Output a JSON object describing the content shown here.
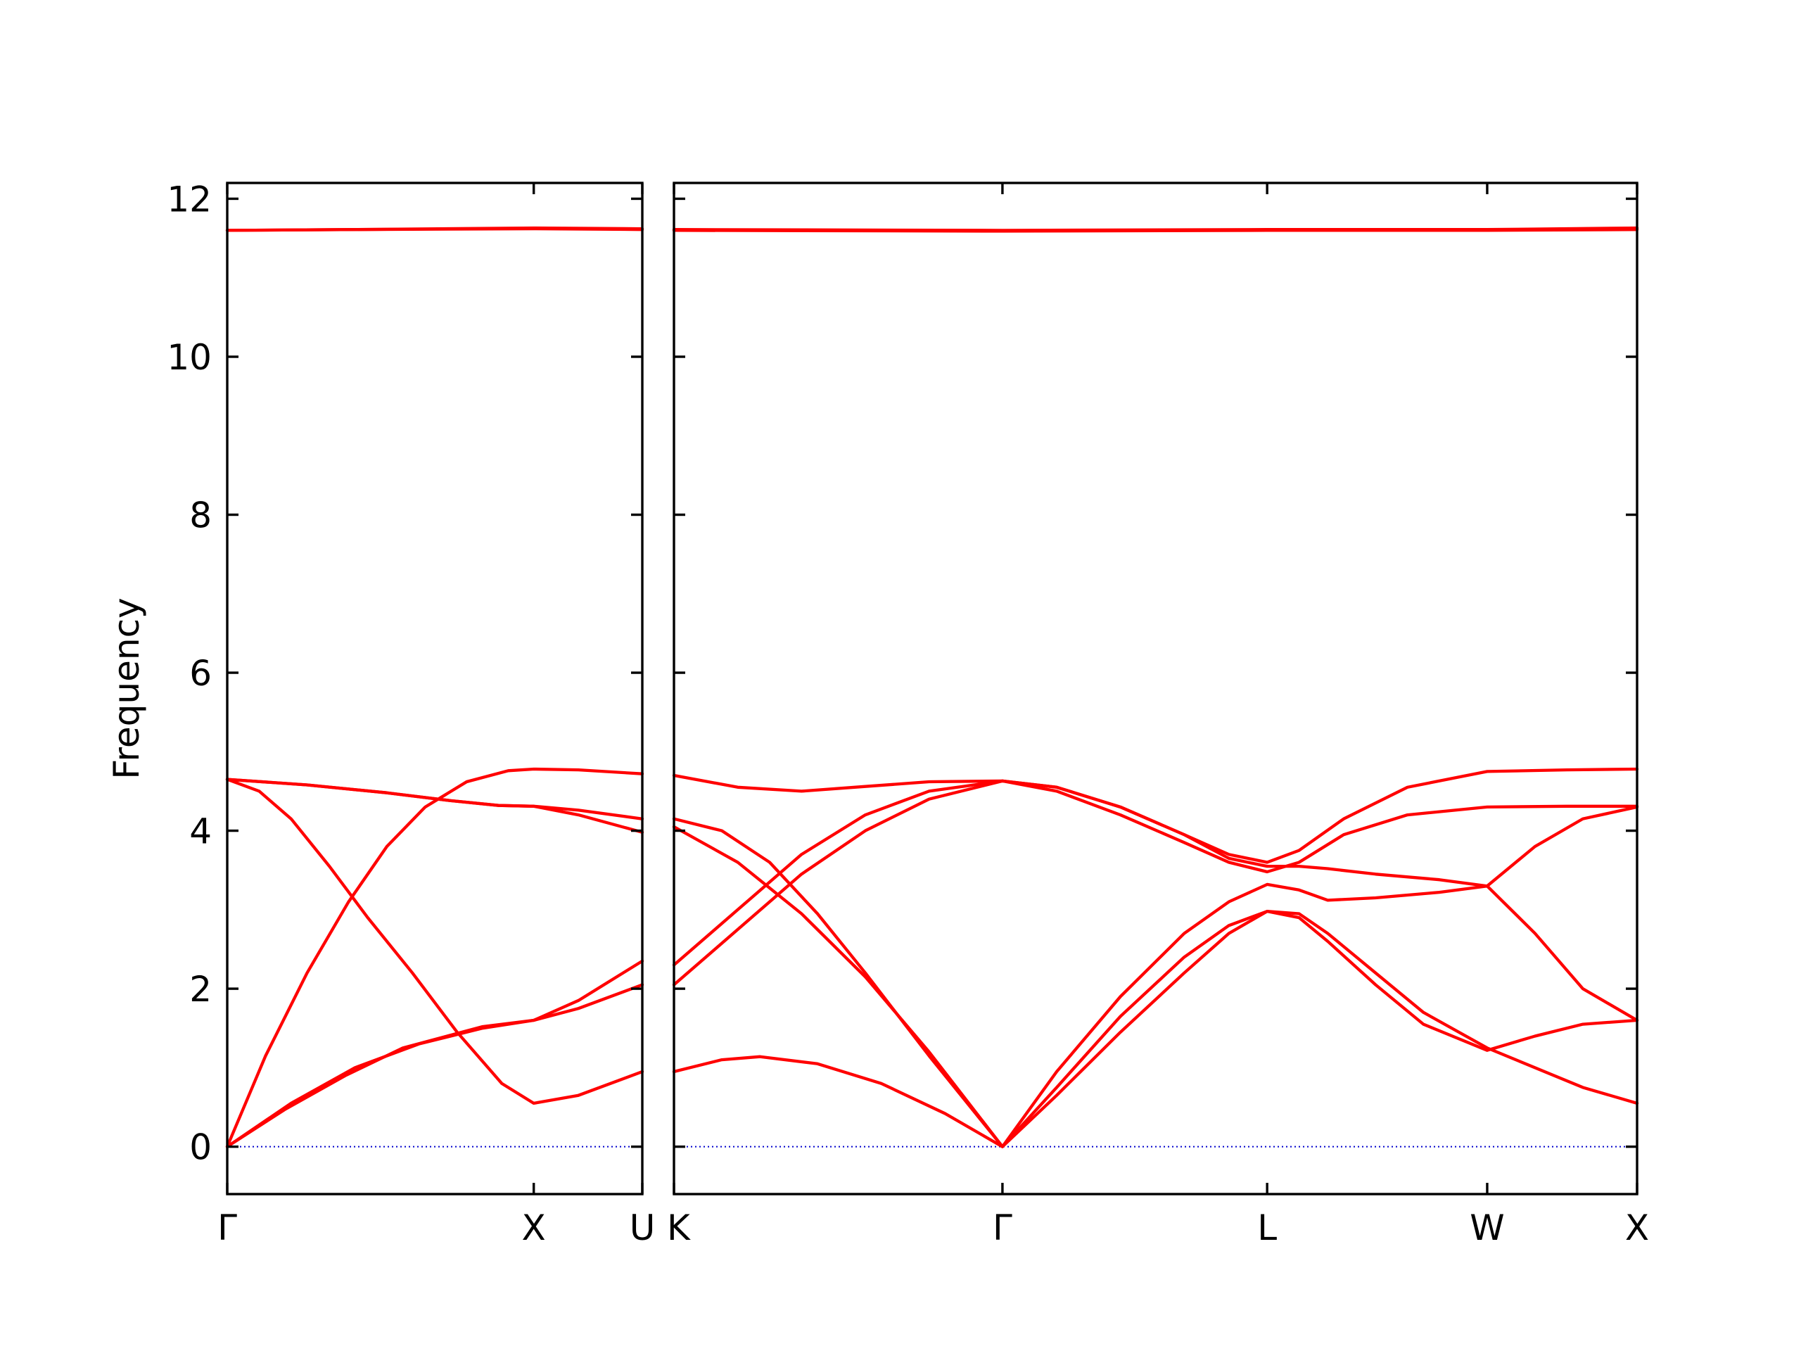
{
  "chart_data": {
    "type": "line",
    "title": "",
    "xlabel": "",
    "ylabel": "Frequency",
    "ylim": [
      -0.6,
      12.2
    ],
    "yticks": [
      0,
      2,
      4,
      6,
      8,
      10,
      12
    ],
    "grid": false,
    "legend": "none",
    "colors": {
      "band": "#ff0000",
      "zero_line": "#0000cc",
      "axes": "#000000"
    },
    "zero_line_style": "dotted",
    "panels": [
      {
        "xlim": [
          0,
          1.3
        ],
        "points": [
          {
            "label": "Γ",
            "x": 0
          },
          {
            "label": "X",
            "x": 0.96
          },
          {
            "label": "U",
            "x": 1.3
          }
        ],
        "bands": [
          {
            "x": [
              0,
              0.18,
              0.37,
              0.55,
              0.8,
              0.96,
              1.1,
              1.3
            ],
            "y": [
              0,
              0.47,
              0.9,
              1.25,
              1.52,
              1.6,
              1.75,
              2.05
            ]
          },
          {
            "x": [
              0,
              0.1,
              0.2,
              0.32,
              0.44,
              0.58,
              0.72,
              0.86,
              0.96,
              1.1,
              1.3
            ],
            "y": [
              4.65,
              4.5,
              4.15,
              3.55,
              2.9,
              2.2,
              1.45,
              0.8,
              0.55,
              0.65,
              0.95
            ]
          },
          {
            "x": [
              0,
              0.12,
              0.25,
              0.38,
              0.5,
              0.62,
              0.75,
              0.88,
              0.96,
              1.1,
              1.3
            ],
            "y": [
              0,
              1.15,
              2.2,
              3.1,
              3.8,
              4.3,
              4.62,
              4.76,
              4.78,
              4.77,
              4.72
            ]
          },
          {
            "x": [
              0,
              0.25,
              0.5,
              0.7,
              0.85,
              0.96,
              1.1,
              1.3
            ],
            "y": [
              4.65,
              4.58,
              4.48,
              4.38,
              4.32,
              4.31,
              4.26,
              4.15
            ]
          },
          {
            "x": [
              0,
              0.25,
              0.5,
              0.7,
              0.85,
              0.96,
              1.1,
              1.3
            ],
            "y": [
              4.65,
              4.58,
              4.48,
              4.38,
              4.32,
              4.31,
              4.2,
              3.98
            ]
          },
          {
            "x": [
              0,
              0.2,
              0.4,
              0.6,
              0.8,
              0.96,
              1.1,
              1.3
            ],
            "y": [
              0,
              0.55,
              1.0,
              1.3,
              1.5,
              1.6,
              1.85,
              2.35
            ]
          },
          {
            "x": [
              0,
              0.4,
              0.96,
              1.3
            ],
            "y": [
              11.6,
              11.61,
              11.63,
              11.62
            ]
          },
          {
            "x": [
              0,
              0.4,
              0.96,
              1.3
            ],
            "y": [
              11.6,
              11.61,
              11.62,
              11.61
            ]
          }
        ]
      },
      {
        "xlim": [
          0,
          3.02
        ],
        "points": [
          {
            "label": "K",
            "x": 0
          },
          {
            "label": "Γ",
            "x": 1.03
          },
          {
            "label": "L",
            "x": 1.86
          },
          {
            "label": "W",
            "x": 2.55
          },
          {
            "label": "X",
            "x": 3.02
          }
        ],
        "bands": [
          {
            "x": [
              0,
              0.15,
              0.27,
              0.45,
              0.65,
              0.85,
              1.03,
              1.2,
              1.4,
              1.6,
              1.74,
              1.86,
              1.96,
              2.05,
              2.2,
              2.35,
              2.55,
              2.7,
              2.85,
              3.02
            ],
            "y": [
              0.95,
              1.1,
              1.14,
              1.05,
              0.8,
              0.42,
              0,
              0.75,
              1.65,
              2.4,
              2.8,
              2.98,
              2.95,
              2.7,
              2.2,
              1.7,
              1.25,
              1.0,
              0.75,
              0.55
            ]
          },
          {
            "x": [
              0,
              0.2,
              0.4,
              0.6,
              0.8,
              1.03,
              1.2,
              1.4,
              1.6,
              1.74,
              1.86,
              1.96,
              2.05,
              2.2,
              2.35,
              2.55,
              2.7,
              2.85,
              3.02
            ],
            "y": [
              4.05,
              3.6,
              2.95,
              2.15,
              1.2,
              0,
              0.65,
              1.45,
              2.2,
              2.7,
              2.98,
              2.9,
              2.6,
              2.05,
              1.55,
              1.22,
              1.4,
              1.55,
              1.6
            ]
          },
          {
            "x": [
              0,
              0.15,
              0.3,
              0.45,
              0.6,
              0.8,
              1.03,
              1.2,
              1.4,
              1.6,
              1.74,
              1.86,
              1.96,
              2.05,
              2.2,
              2.4,
              2.55,
              2.7,
              2.85,
              3.02
            ],
            "y": [
              4.15,
              4.0,
              3.6,
              2.95,
              2.2,
              1.15,
              0,
              0.95,
              1.9,
              2.7,
              3.1,
              3.32,
              3.25,
              3.12,
              3.15,
              3.22,
              3.3,
              2.7,
              2.0,
              1.6
            ]
          },
          {
            "x": [
              0,
              0.2,
              0.4,
              0.6,
              0.8,
              1.03,
              1.2,
              1.4,
              1.6,
              1.74,
              1.86,
              1.96,
              2.05,
              2.2,
              2.4,
              2.55,
              2.7,
              2.85,
              3.02
            ],
            "y": [
              2.05,
              2.75,
              3.45,
              4.0,
              4.4,
              4.63,
              4.55,
              4.3,
              3.95,
              3.65,
              3.55,
              3.55,
              3.52,
              3.45,
              3.38,
              3.3,
              3.8,
              4.15,
              4.3
            ]
          },
          {
            "x": [
              0,
              0.2,
              0.4,
              0.6,
              0.8,
              1.03,
              1.2,
              1.4,
              1.6,
              1.74,
              1.86,
              1.96,
              2.1,
              2.3,
              2.55,
              2.8,
              3.02
            ],
            "y": [
              2.3,
              3.0,
              3.7,
              4.2,
              4.5,
              4.63,
              4.5,
              4.2,
              3.85,
              3.6,
              3.48,
              3.6,
              3.95,
              4.2,
              4.3,
              4.31,
              4.31
            ]
          },
          {
            "x": [
              0,
              0.2,
              0.4,
              0.6,
              0.8,
              1.03,
              1.2,
              1.4,
              1.6,
              1.74,
              1.86,
              1.96,
              2.1,
              2.3,
              2.55,
              2.8,
              3.02
            ],
            "y": [
              4.7,
              4.55,
              4.5,
              4.56,
              4.62,
              4.63,
              4.55,
              4.3,
              3.95,
              3.7,
              3.6,
              3.75,
              4.15,
              4.55,
              4.75,
              4.77,
              4.78
            ]
          },
          {
            "x": [
              0,
              1.03,
              1.86,
              2.55,
              3.02
            ],
            "y": [
              11.61,
              11.6,
              11.61,
              11.61,
              11.63
            ]
          },
          {
            "x": [
              0,
              1.03,
              1.86,
              2.55,
              3.02
            ],
            "y": [
              11.6,
              11.59,
              11.6,
              11.6,
              11.61
            ]
          }
        ]
      }
    ]
  }
}
